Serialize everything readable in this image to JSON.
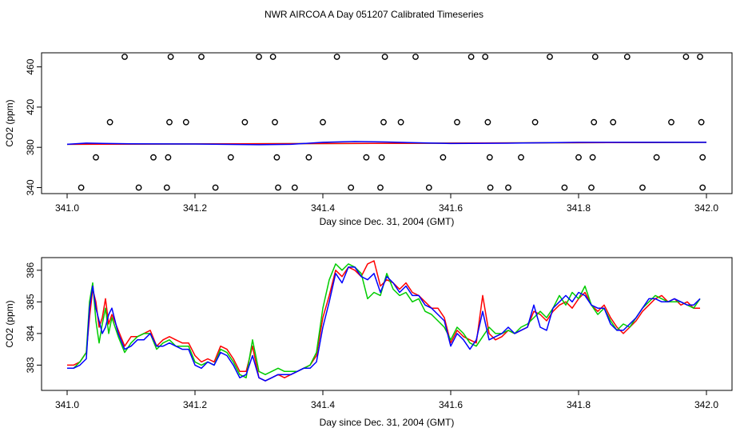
{
  "title": "NWR AIRCOA A  Day 051207  Calibrated Timeseries",
  "chart_data": [
    {
      "type": "scatter",
      "xlabel": "Day since Dec. 31, 2004 (GMT)",
      "ylabel": "CO2 (ppm)",
      "xlim": [
        340.96,
        342.04
      ],
      "ylim": [
        334,
        474
      ],
      "xticks": [
        341.0,
        341.2,
        341.4,
        341.6,
        341.8,
        342.0
      ],
      "xtick_labels": [
        "341.0",
        "341.2",
        "341.4",
        "341.6",
        "341.8",
        "342.0"
      ],
      "yticks": [
        340,
        380,
        420,
        460
      ],
      "ytick_labels": [
        "340",
        "380",
        "420",
        "460"
      ],
      "grid": false,
      "points": [
        {
          "level": 340,
          "x": [
            341.022,
            341.112,
            341.156,
            341.232,
            341.33,
            341.356,
            341.444,
            341.49,
            341.566,
            341.662,
            341.69,
            341.778,
            341.82,
            341.9,
            341.994
          ]
        },
        {
          "level": 370,
          "x": [
            341.045,
            341.135,
            341.158,
            341.256,
            341.328,
            341.378,
            341.468,
            341.492,
            341.588,
            341.661,
            341.71,
            341.8,
            341.822,
            341.922,
            341.994
          ]
        },
        {
          "level": 405,
          "x": [
            341.067,
            341.16,
            341.186,
            341.278,
            341.325,
            341.4,
            341.495,
            341.522,
            341.61,
            341.658,
            341.732,
            341.824,
            341.854,
            341.945,
            341.992
          ]
        },
        {
          "level": 470,
          "x": [
            341.09,
            341.162,
            341.21,
            341.3,
            341.322,
            341.422,
            341.497,
            341.545,
            341.632,
            341.654,
            341.755,
            341.826,
            341.876,
            341.968,
            341.99
          ]
        }
      ],
      "series": [
        {
          "color": "#00cc00",
          "x": [
            341.0,
            342.0
          ],
          "y": [
            383.0,
            385.0
          ]
        },
        {
          "color": "#ff0000",
          "x": [
            341.0,
            342.0
          ],
          "y": [
            383.0,
            385.0
          ]
        },
        {
          "color": "#0000ff",
          "x": [
            341.0,
            341.03,
            341.1,
            341.2,
            341.3,
            341.35,
            341.4,
            341.45,
            341.5,
            341.6,
            341.7,
            341.8,
            341.9,
            342.0
          ],
          "y": [
            383.0,
            384.2,
            383.5,
            383.3,
            382.6,
            383.0,
            385.0,
            385.8,
            385.3,
            383.8,
            384.2,
            385.0,
            385.0,
            385.0
          ]
        }
      ]
    },
    {
      "type": "line",
      "xlabel": "Day since Dec. 31, 2004 (GMT)",
      "ylabel": "CO2 (ppm)",
      "xlim": [
        340.96,
        342.04
      ],
      "ylim": [
        382.2,
        386.4
      ],
      "xticks": [
        341.0,
        341.2,
        341.4,
        341.6,
        341.8,
        342.0
      ],
      "xtick_labels": [
        "341.0",
        "341.2",
        "341.4",
        "341.6",
        "341.8",
        "342.0"
      ],
      "yticks": [
        383,
        384,
        385,
        386
      ],
      "ytick_labels": [
        "383",
        "384",
        "385",
        "386"
      ],
      "grid": false,
      "series": [
        {
          "color": "#ff0000",
          "x": [
            341.0,
            341.01,
            341.02,
            341.03,
            341.035,
            341.04,
            341.045,
            341.05,
            341.055,
            341.06,
            341.065,
            341.07,
            341.08,
            341.09,
            341.1,
            341.11,
            341.12,
            341.13,
            341.14,
            341.15,
            341.16,
            341.17,
            341.18,
            341.19,
            341.2,
            341.21,
            341.22,
            341.23,
            341.24,
            341.25,
            341.26,
            341.27,
            341.28,
            341.29,
            341.3,
            341.31,
            341.32,
            341.33,
            341.34,
            341.35,
            341.36,
            341.37,
            341.38,
            341.39,
            341.4,
            341.41,
            341.42,
            341.43,
            341.44,
            341.45,
            341.46,
            341.47,
            341.48,
            341.49,
            341.5,
            341.51,
            341.52,
            341.53,
            341.54,
            341.55,
            341.56,
            341.57,
            341.58,
            341.59,
            341.6,
            341.61,
            341.62,
            341.63,
            341.64,
            341.65,
            341.66,
            341.67,
            341.68,
            341.69,
            341.7,
            341.71,
            341.72,
            341.73,
            341.74,
            341.75,
            341.76,
            341.77,
            341.78,
            341.79,
            341.8,
            341.81,
            341.82,
            341.83,
            341.84,
            341.85,
            341.86,
            341.87,
            341.88,
            341.89,
            341.9,
            341.91,
            341.92,
            341.93,
            341.94,
            341.95,
            341.96,
            341.97,
            341.98,
            341.99
          ],
          "y": [
            383.0,
            383.0,
            383.1,
            383.4,
            384.5,
            385.4,
            385.0,
            384.2,
            384.5,
            385.1,
            384.3,
            384.6,
            384.1,
            383.6,
            383.9,
            383.9,
            384.0,
            384.1,
            383.6,
            383.8,
            383.9,
            383.8,
            383.7,
            383.7,
            383.3,
            383.1,
            383.2,
            383.1,
            383.6,
            383.5,
            383.2,
            382.8,
            382.8,
            383.6,
            382.6,
            382.5,
            382.6,
            382.7,
            382.6,
            382.7,
            382.8,
            382.9,
            383.0,
            383.3,
            384.5,
            385.2,
            386.0,
            385.8,
            386.1,
            386.0,
            385.8,
            386.2,
            386.3,
            385.5,
            385.7,
            385.6,
            385.4,
            385.6,
            385.3,
            385.2,
            385.0,
            384.8,
            384.8,
            384.5,
            383.7,
            384.1,
            383.9,
            383.8,
            383.7,
            385.2,
            384.0,
            383.8,
            383.9,
            384.1,
            384.0,
            384.1,
            384.2,
            384.7,
            384.6,
            384.4,
            384.7,
            384.9,
            385.0,
            384.8,
            385.1,
            385.3,
            384.9,
            384.7,
            384.9,
            384.5,
            384.2,
            384.0,
            384.2,
            384.4,
            384.7,
            384.9,
            385.1,
            385.2,
            385.0,
            385.1,
            384.9,
            385.0,
            384.8,
            384.8
          ]
        },
        {
          "color": "#00cc00",
          "x": [
            341.0,
            341.01,
            341.02,
            341.03,
            341.035,
            341.04,
            341.045,
            341.05,
            341.055,
            341.06,
            341.065,
            341.07,
            341.08,
            341.09,
            341.1,
            341.11,
            341.12,
            341.13,
            341.14,
            341.15,
            341.16,
            341.17,
            341.18,
            341.19,
            341.2,
            341.21,
            341.22,
            341.23,
            341.24,
            341.25,
            341.26,
            341.27,
            341.28,
            341.29,
            341.3,
            341.31,
            341.32,
            341.33,
            341.34,
            341.35,
            341.36,
            341.37,
            341.38,
            341.39,
            341.4,
            341.41,
            341.42,
            341.43,
            341.44,
            341.45,
            341.46,
            341.47,
            341.48,
            341.49,
            341.5,
            341.51,
            341.52,
            341.53,
            341.54,
            341.55,
            341.56,
            341.57,
            341.58,
            341.59,
            341.6,
            341.61,
            341.62,
            341.63,
            341.64,
            341.65,
            341.66,
            341.67,
            341.68,
            341.69,
            341.7,
            341.71,
            341.72,
            341.73,
            341.74,
            341.75,
            341.76,
            341.77,
            341.78,
            341.79,
            341.8,
            341.81,
            341.82,
            341.83,
            341.84,
            341.85,
            341.86,
            341.87,
            341.88,
            341.89,
            341.9,
            341.91,
            341.92,
            341.93,
            341.94,
            341.95,
            341.96,
            341.97,
            341.98,
            341.99
          ],
          "y": [
            382.9,
            382.9,
            383.1,
            383.4,
            385.0,
            385.6,
            384.4,
            383.7,
            384.3,
            384.8,
            384.0,
            384.5,
            383.9,
            383.4,
            383.7,
            383.9,
            384.0,
            384.0,
            383.5,
            383.7,
            383.8,
            383.6,
            383.6,
            383.6,
            383.1,
            383.0,
            383.1,
            383.0,
            383.5,
            383.4,
            383.1,
            382.7,
            382.6,
            383.8,
            382.8,
            382.7,
            382.8,
            382.9,
            382.8,
            382.8,
            382.8,
            382.9,
            383.0,
            383.4,
            384.8,
            385.7,
            386.2,
            386.0,
            386.2,
            386.1,
            385.9,
            385.1,
            385.3,
            385.2,
            385.9,
            385.4,
            385.2,
            385.3,
            385.0,
            385.1,
            384.7,
            384.6,
            384.4,
            384.2,
            383.8,
            384.2,
            384.0,
            383.7,
            383.6,
            383.9,
            384.2,
            384.0,
            384.0,
            384.1,
            384.0,
            384.2,
            384.3,
            384.5,
            384.7,
            384.5,
            384.8,
            385.2,
            384.9,
            385.3,
            385.1,
            385.5,
            384.9,
            384.6,
            384.8,
            384.4,
            384.1,
            384.3,
            384.2,
            384.5,
            384.8,
            385.0,
            385.2,
            385.1,
            385.0,
            385.0,
            385.0,
            384.9,
            384.8,
            385.1
          ]
        },
        {
          "color": "#0000ff",
          "x": [
            341.0,
            341.01,
            341.02,
            341.03,
            341.035,
            341.04,
            341.045,
            341.05,
            341.055,
            341.06,
            341.065,
            341.07,
            341.08,
            341.09,
            341.1,
            341.11,
            341.12,
            341.13,
            341.14,
            341.15,
            341.16,
            341.17,
            341.18,
            341.19,
            341.2,
            341.21,
            341.22,
            341.23,
            341.24,
            341.25,
            341.26,
            341.27,
            341.28,
            341.29,
            341.3,
            341.31,
            341.32,
            341.33,
            341.34,
            341.35,
            341.36,
            341.37,
            341.38,
            341.39,
            341.4,
            341.41,
            341.42,
            341.43,
            341.44,
            341.45,
            341.46,
            341.47,
            341.48,
            341.49,
            341.5,
            341.51,
            341.52,
            341.53,
            341.54,
            341.55,
            341.56,
            341.57,
            341.58,
            341.59,
            341.6,
            341.61,
            341.62,
            341.63,
            341.64,
            341.65,
            341.66,
            341.67,
            341.68,
            341.69,
            341.7,
            341.71,
            341.72,
            341.73,
            341.74,
            341.75,
            341.76,
            341.77,
            341.78,
            341.79,
            341.8,
            341.81,
            341.82,
            341.83,
            341.84,
            341.85,
            341.86,
            341.87,
            341.88,
            341.89,
            341.9,
            341.91,
            341.92,
            341.93,
            341.94,
            341.95,
            341.96,
            341.97,
            341.98,
            341.99
          ],
          "y": [
            382.9,
            382.9,
            383.0,
            383.2,
            384.8,
            385.5,
            384.8,
            384.4,
            384.0,
            384.2,
            384.6,
            384.8,
            384.0,
            383.5,
            383.6,
            383.8,
            383.8,
            384.0,
            383.6,
            383.6,
            383.7,
            383.6,
            383.5,
            383.5,
            383.0,
            382.9,
            383.1,
            383.0,
            383.4,
            383.3,
            383.0,
            382.6,
            382.7,
            383.3,
            382.6,
            382.5,
            382.6,
            382.7,
            382.7,
            382.7,
            382.8,
            382.9,
            382.9,
            383.1,
            384.2,
            385.0,
            385.9,
            385.6,
            386.1,
            386.1,
            385.8,
            385.7,
            385.9,
            385.3,
            385.8,
            385.6,
            385.3,
            385.5,
            385.2,
            385.2,
            384.9,
            384.8,
            384.6,
            384.4,
            383.6,
            384.0,
            383.8,
            383.5,
            383.8,
            384.7,
            383.8,
            383.9,
            384.0,
            384.2,
            384.0,
            384.1,
            384.2,
            384.9,
            384.2,
            384.1,
            384.8,
            385.0,
            385.2,
            385.0,
            385.3,
            385.2,
            384.9,
            384.8,
            384.8,
            384.3,
            384.1,
            384.1,
            384.3,
            384.5,
            384.8,
            385.1,
            385.1,
            385.0,
            385.0,
            385.1,
            385.0,
            384.9,
            384.9,
            385.1
          ]
        }
      ]
    }
  ]
}
